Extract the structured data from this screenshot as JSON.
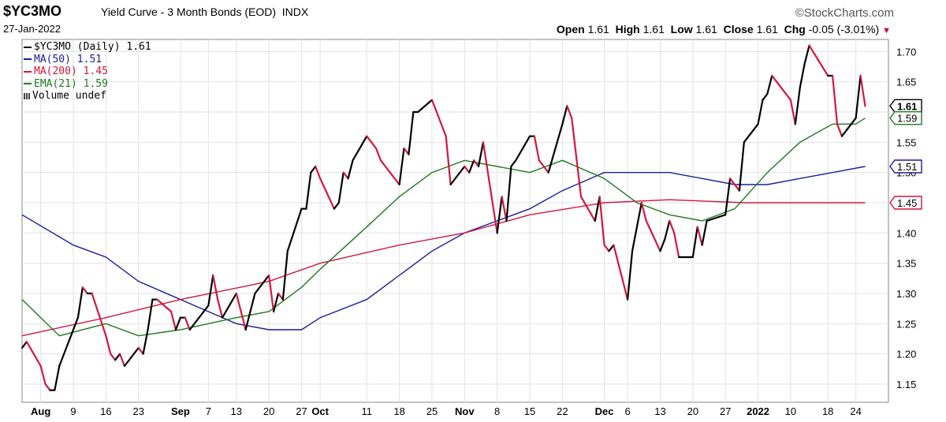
{
  "header": {
    "symbol": "$YC3MO",
    "name": "Yield Curve - 3 Month Bonds (EOD)",
    "exchange": "INDX",
    "date": "27-Jan-2022",
    "brand": "©StockCharts.com",
    "open_label": "Open",
    "open": "1.61",
    "high_label": "High",
    "high": "1.61",
    "low_label": "Low",
    "low": "1.61",
    "close_label": "Close",
    "close": "1.61",
    "chg_label": "Chg",
    "chg": "-0.05 (-3.01%)"
  },
  "legend": [
    {
      "text": "$YC3MO (Daily) 1.61",
      "color": "#000000"
    },
    {
      "text": "MA(50) 1.51",
      "color": "#1c1c9c"
    },
    {
      "text": "MA(200) 1.45",
      "color": "#d3173f"
    },
    {
      "text": "EMA(21) 1.59",
      "color": "#1e7a1e"
    },
    {
      "text": "Volume undef",
      "color": "#444444"
    }
  ],
  "colors": {
    "up": "#000000",
    "down": "#d3173f",
    "ma50": "#1c1c9c",
    "ma200": "#d3173f",
    "ema21": "#1e7a1e",
    "grid": "#e3e3e3"
  },
  "chart_data": {
    "type": "line",
    "title": "$YC3MO Yield Curve - 3 Month Bonds (EOD)",
    "ylim": [
      1.12,
      1.72
    ],
    "y_ticks": [
      1.15,
      1.2,
      1.25,
      1.3,
      1.35,
      1.4,
      1.45,
      1.5,
      1.55,
      1.6,
      1.65,
      1.7
    ],
    "y_tick_labels": [
      "1.15",
      "1.20",
      "1.25",
      "1.30",
      "1.35",
      "1.40",
      "1.45",
      "1.50",
      "1.55",
      "1.60",
      "1.65",
      "1.70"
    ],
    "x_ticks": [
      {
        "label": "Aug",
        "date": "2021-08-02",
        "bold": true
      },
      {
        "label": "9",
        "date": "2021-08-09"
      },
      {
        "label": "16",
        "date": "2021-08-16"
      },
      {
        "label": "23",
        "date": "2021-08-23"
      },
      {
        "label": "Sep",
        "date": "2021-09-01",
        "bold": true
      },
      {
        "label": "7",
        "date": "2021-09-07"
      },
      {
        "label": "13",
        "date": "2021-09-13"
      },
      {
        "label": "20",
        "date": "2021-09-20"
      },
      {
        "label": "27",
        "date": "2021-09-27"
      },
      {
        "label": "Oct",
        "date": "2021-10-01",
        "bold": true
      },
      {
        "label": "11",
        "date": "2021-10-11"
      },
      {
        "label": "18",
        "date": "2021-10-18"
      },
      {
        "label": "25",
        "date": "2021-10-25"
      },
      {
        "label": "Nov",
        "date": "2021-11-01",
        "bold": true
      },
      {
        "label": "8",
        "date": "2021-11-08"
      },
      {
        "label": "15",
        "date": "2021-11-15"
      },
      {
        "label": "22",
        "date": "2021-11-22"
      },
      {
        "label": "Dec",
        "date": "2021-12-01",
        "bold": true
      },
      {
        "label": "6",
        "date": "2021-12-06"
      },
      {
        "label": "13",
        "date": "2021-12-13"
      },
      {
        "label": "20",
        "date": "2021-12-20"
      },
      {
        "label": "27",
        "date": "2021-12-27"
      },
      {
        "label": "2022",
        "date": "2022-01-03",
        "bold": true
      },
      {
        "label": "10",
        "date": "2022-01-10"
      },
      {
        "label": "18",
        "date": "2022-01-18"
      },
      {
        "label": "24",
        "date": "2022-01-24"
      }
    ],
    "x_range": [
      "2021-07-29",
      "2022-01-31"
    ],
    "series": [
      {
        "name": "$YC3MO (Daily)",
        "style": "updown",
        "points": [
          [
            "2021-07-29",
            1.21
          ],
          [
            "2021-07-30",
            1.22
          ],
          [
            "2021-08-02",
            1.18
          ],
          [
            "2021-08-03",
            1.15
          ],
          [
            "2021-08-04",
            1.14
          ],
          [
            "2021-08-05",
            1.14
          ],
          [
            "2021-08-06",
            1.18
          ],
          [
            "2021-08-09",
            1.24
          ],
          [
            "2021-08-10",
            1.26
          ],
          [
            "2021-08-11",
            1.31
          ],
          [
            "2021-08-12",
            1.3
          ],
          [
            "2021-08-13",
            1.3
          ],
          [
            "2021-08-16",
            1.23
          ],
          [
            "2021-08-17",
            1.2
          ],
          [
            "2021-08-18",
            1.19
          ],
          [
            "2021-08-19",
            1.2
          ],
          [
            "2021-08-20",
            1.18
          ],
          [
            "2021-08-23",
            1.21
          ],
          [
            "2021-08-24",
            1.2
          ],
          [
            "2021-08-25",
            1.24
          ],
          [
            "2021-08-26",
            1.29
          ],
          [
            "2021-08-27",
            1.29
          ],
          [
            "2021-08-30",
            1.27
          ],
          [
            "2021-08-31",
            1.24
          ],
          [
            "2021-09-01",
            1.26
          ],
          [
            "2021-09-02",
            1.26
          ],
          [
            "2021-09-03",
            1.24
          ],
          [
            "2021-09-07",
            1.28
          ],
          [
            "2021-09-08",
            1.33
          ],
          [
            "2021-09-09",
            1.29
          ],
          [
            "2021-09-10",
            1.26
          ],
          [
            "2021-09-13",
            1.3
          ],
          [
            "2021-09-14",
            1.27
          ],
          [
            "2021-09-15",
            1.24
          ],
          [
            "2021-09-16",
            1.27
          ],
          [
            "2021-09-17",
            1.3
          ],
          [
            "2021-09-20",
            1.33
          ],
          [
            "2021-09-21",
            1.27
          ],
          [
            "2021-09-22",
            1.3
          ],
          [
            "2021-09-23",
            1.29
          ],
          [
            "2021-09-24",
            1.37
          ],
          [
            "2021-09-27",
            1.44
          ],
          [
            "2021-09-28",
            1.44
          ],
          [
            "2021-09-29",
            1.5
          ],
          [
            "2021-09-30",
            1.51
          ],
          [
            "2021-10-01",
            1.49
          ],
          [
            "2021-10-04",
            1.44
          ],
          [
            "2021-10-05",
            1.45
          ],
          [
            "2021-10-06",
            1.5
          ],
          [
            "2021-10-07",
            1.49
          ],
          [
            "2021-10-08",
            1.52
          ],
          [
            "2021-10-11",
            1.56
          ],
          [
            "2021-10-12",
            1.55
          ],
          [
            "2021-10-13",
            1.54
          ],
          [
            "2021-10-14",
            1.52
          ],
          [
            "2021-10-15",
            1.51
          ],
          [
            "2021-10-18",
            1.48
          ],
          [
            "2021-10-19",
            1.54
          ],
          [
            "2021-10-20",
            1.53
          ],
          [
            "2021-10-21",
            1.6
          ],
          [
            "2021-10-22",
            1.6
          ],
          [
            "2021-10-25",
            1.62
          ],
          [
            "2021-10-26",
            1.6
          ],
          [
            "2021-10-27",
            1.58
          ],
          [
            "2021-10-28",
            1.56
          ],
          [
            "2021-10-29",
            1.48
          ],
          [
            "2021-11-01",
            1.51
          ],
          [
            "2021-11-02",
            1.5
          ],
          [
            "2021-11-03",
            1.52
          ],
          [
            "2021-11-04",
            1.51
          ],
          [
            "2021-11-05",
            1.55
          ],
          [
            "2021-11-08",
            1.4
          ],
          [
            "2021-11-09",
            1.46
          ],
          [
            "2021-11-10",
            1.42
          ],
          [
            "2021-11-11",
            1.51
          ],
          [
            "2021-11-12",
            1.52
          ],
          [
            "2021-11-15",
            1.56
          ],
          [
            "2021-11-16",
            1.56
          ],
          [
            "2021-11-17",
            1.52
          ],
          [
            "2021-11-18",
            1.51
          ],
          [
            "2021-11-19",
            1.5
          ],
          [
            "2021-11-22",
            1.58
          ],
          [
            "2021-11-23",
            1.61
          ],
          [
            "2021-11-24",
            1.59
          ],
          [
            "2021-11-26",
            1.46
          ],
          [
            "2021-11-29",
            1.42
          ],
          [
            "2021-11-30",
            1.46
          ],
          [
            "2021-12-01",
            1.38
          ],
          [
            "2021-12-02",
            1.37
          ],
          [
            "2021-12-03",
            1.38
          ],
          [
            "2021-12-06",
            1.29
          ],
          [
            "2021-12-07",
            1.37
          ],
          [
            "2021-12-08",
            1.41
          ],
          [
            "2021-12-09",
            1.45
          ],
          [
            "2021-12-10",
            1.42
          ],
          [
            "2021-12-13",
            1.37
          ],
          [
            "2021-12-14",
            1.39
          ],
          [
            "2021-12-15",
            1.42
          ],
          [
            "2021-12-16",
            1.4
          ],
          [
            "2021-12-17",
            1.36
          ],
          [
            "2021-12-20",
            1.36
          ],
          [
            "2021-12-21",
            1.41
          ],
          [
            "2021-12-22",
            1.38
          ],
          [
            "2021-12-23",
            1.42
          ],
          [
            "2021-12-27",
            1.43
          ],
          [
            "2021-12-28",
            1.49
          ],
          [
            "2021-12-29",
            1.48
          ],
          [
            "2021-12-30",
            1.47
          ],
          [
            "2021-12-31",
            1.55
          ],
          [
            "2022-01-03",
            1.58
          ],
          [
            "2022-01-04",
            1.62
          ],
          [
            "2022-01-05",
            1.63
          ],
          [
            "2022-01-06",
            1.66
          ],
          [
            "2022-01-07",
            1.65
          ],
          [
            "2022-01-10",
            1.62
          ],
          [
            "2022-01-11",
            1.58
          ],
          [
            "2022-01-12",
            1.64
          ],
          [
            "2022-01-13",
            1.68
          ],
          [
            "2022-01-14",
            1.71
          ],
          [
            "2022-01-18",
            1.66
          ],
          [
            "2022-01-19",
            1.66
          ],
          [
            "2022-01-20",
            1.58
          ],
          [
            "2022-01-21",
            1.56
          ],
          [
            "2022-01-24",
            1.59
          ],
          [
            "2022-01-25",
            1.66
          ],
          [
            "2022-01-26",
            1.61
          ]
        ]
      },
      {
        "name": "MA(50)",
        "color": "#1c1c9c",
        "points": [
          [
            "2021-07-29",
            1.43
          ],
          [
            "2021-08-09",
            1.38
          ],
          [
            "2021-08-16",
            1.36
          ],
          [
            "2021-08-23",
            1.32
          ],
          [
            "2021-09-01",
            1.29
          ],
          [
            "2021-09-07",
            1.27
          ],
          [
            "2021-09-13",
            1.25
          ],
          [
            "2021-09-20",
            1.24
          ],
          [
            "2021-09-27",
            1.24
          ],
          [
            "2021-10-01",
            1.26
          ],
          [
            "2021-10-11",
            1.29
          ],
          [
            "2021-10-18",
            1.33
          ],
          [
            "2021-10-25",
            1.37
          ],
          [
            "2021-11-01",
            1.4
          ],
          [
            "2021-11-08",
            1.42
          ],
          [
            "2021-11-15",
            1.44
          ],
          [
            "2021-11-22",
            1.47
          ],
          [
            "2021-12-01",
            1.5
          ],
          [
            "2021-12-08",
            1.5
          ],
          [
            "2021-12-15",
            1.5
          ],
          [
            "2021-12-22",
            1.49
          ],
          [
            "2021-12-29",
            1.48
          ],
          [
            "2022-01-05",
            1.48
          ],
          [
            "2022-01-12",
            1.49
          ],
          [
            "2022-01-19",
            1.5
          ],
          [
            "2022-01-26",
            1.51
          ]
        ]
      },
      {
        "name": "MA(200)",
        "color": "#d3173f",
        "points": [
          [
            "2021-07-29",
            1.23
          ],
          [
            "2021-08-16",
            1.26
          ],
          [
            "2021-09-01",
            1.29
          ],
          [
            "2021-09-20",
            1.32
          ],
          [
            "2021-10-01",
            1.35
          ],
          [
            "2021-10-18",
            1.38
          ],
          [
            "2021-11-01",
            1.4
          ],
          [
            "2021-11-15",
            1.43
          ],
          [
            "2021-12-01",
            1.45
          ],
          [
            "2021-12-15",
            1.455
          ],
          [
            "2021-12-31",
            1.45
          ],
          [
            "2022-01-26",
            1.45
          ]
        ]
      },
      {
        "name": "EMA(21)",
        "color": "#1e7a1e",
        "points": [
          [
            "2021-07-29",
            1.29
          ],
          [
            "2021-08-06",
            1.23
          ],
          [
            "2021-08-16",
            1.25
          ],
          [
            "2021-08-23",
            1.23
          ],
          [
            "2021-09-01",
            1.24
          ],
          [
            "2021-09-13",
            1.26
          ],
          [
            "2021-09-20",
            1.27
          ],
          [
            "2021-09-27",
            1.31
          ],
          [
            "2021-10-01",
            1.34
          ],
          [
            "2021-10-11",
            1.41
          ],
          [
            "2021-10-18",
            1.46
          ],
          [
            "2021-10-25",
            1.5
          ],
          [
            "2021-11-01",
            1.52
          ],
          [
            "2021-11-08",
            1.51
          ],
          [
            "2021-11-15",
            1.5
          ],
          [
            "2021-11-22",
            1.52
          ],
          [
            "2021-12-01",
            1.49
          ],
          [
            "2021-12-08",
            1.45
          ],
          [
            "2021-12-15",
            1.43
          ],
          [
            "2021-12-22",
            1.42
          ],
          [
            "2021-12-29",
            1.44
          ],
          [
            "2022-01-05",
            1.5
          ],
          [
            "2022-01-12",
            1.55
          ],
          [
            "2022-01-19",
            1.58
          ],
          [
            "2022-01-24",
            1.58
          ],
          [
            "2022-01-26",
            1.59
          ]
        ]
      }
    ],
    "last_value_tags": [
      {
        "label": "1.61",
        "value": 1.61,
        "color": "#000000",
        "bold": true
      },
      {
        "label": "1.59",
        "value": 1.59,
        "color": "#1e7a1e"
      },
      {
        "label": "1.51",
        "value": 1.51,
        "color": "#1c1c9c"
      },
      {
        "label": "1.45",
        "value": 1.45,
        "color": "#d3173f"
      }
    ],
    "grid": true,
    "legend_position": "top-left"
  }
}
